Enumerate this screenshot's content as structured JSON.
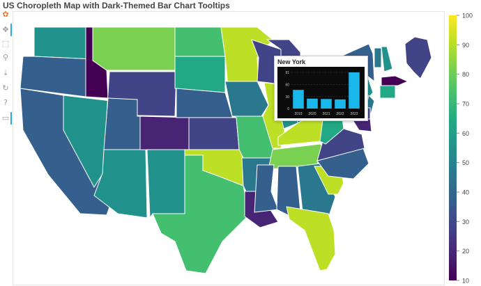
{
  "title": "US Choropleth Map with Dark-Themed Bar Chart Tooltips",
  "colors": {
    "viridis": [
      "#440154",
      "#482475",
      "#414487",
      "#355f8d",
      "#2a788e",
      "#21918c",
      "#22a884",
      "#44bf70",
      "#7ad151",
      "#bddf26",
      "#fde725"
    ],
    "tooltip_bar": "#1ab7ea",
    "tooltip_bg": "#0b0b0b",
    "state_border": "#ffffff"
  },
  "toolbar": {
    "items": [
      {
        "name": "bokeh-logo-icon",
        "glyph": "✿",
        "active": false
      },
      {
        "name": "pan-icon",
        "glyph": "✥",
        "active": true
      },
      {
        "name": "box-zoom-icon",
        "glyph": "⬚",
        "active": false
      },
      {
        "name": "wheel-zoom-icon",
        "glyph": "⚲",
        "active": false
      },
      {
        "name": "save-icon",
        "glyph": "⤓",
        "active": false
      },
      {
        "name": "reset-icon",
        "glyph": "↻",
        "active": false
      },
      {
        "name": "help-icon",
        "glyph": "?",
        "active": false
      },
      {
        "name": "hover-icon",
        "glyph": "▭",
        "active": true
      }
    ]
  },
  "colorbar": {
    "low": 10,
    "high": 100,
    "ticks": [
      "10",
      "20",
      "30",
      "40",
      "50",
      "60",
      "70",
      "80",
      "90",
      "100"
    ]
  },
  "states": [
    {
      "code": "WA",
      "value": 55
    },
    {
      "code": "OR",
      "value": 38
    },
    {
      "code": "CA",
      "value": 36
    },
    {
      "code": "NV",
      "value": 58
    },
    {
      "code": "ID",
      "value": 10
    },
    {
      "code": "MT",
      "value": 85
    },
    {
      "code": "WY",
      "value": 32
    },
    {
      "code": "UT",
      "value": 35
    },
    {
      "code": "AZ",
      "value": 55
    },
    {
      "code": "CO",
      "value": 22
    },
    {
      "code": "NM",
      "value": 57
    },
    {
      "code": "ND",
      "value": 72
    },
    {
      "code": "SD",
      "value": 60
    },
    {
      "code": "NE",
      "value": 37
    },
    {
      "code": "KS",
      "value": 28
    },
    {
      "code": "OK",
      "value": 95
    },
    {
      "code": "TX",
      "value": 70
    },
    {
      "code": "MN",
      "value": 95
    },
    {
      "code": "IA",
      "value": 45
    },
    {
      "code": "MO",
      "value": 75
    },
    {
      "code": "AR",
      "value": 44
    },
    {
      "code": "LA",
      "value": 22
    },
    {
      "code": "WI",
      "value": 30
    },
    {
      "code": "IL",
      "value": 90
    },
    {
      "code": "MI",
      "value": 30
    },
    {
      "code": "IN",
      "value": 55
    },
    {
      "code": "OH",
      "value": 40
    },
    {
      "code": "KY",
      "value": 90
    },
    {
      "code": "TN",
      "value": 85
    },
    {
      "code": "MS",
      "value": 40
    },
    {
      "code": "AL",
      "value": 38
    },
    {
      "code": "GA",
      "value": 48
    },
    {
      "code": "FL",
      "value": 93
    },
    {
      "code": "SC",
      "value": 92
    },
    {
      "code": "NC",
      "value": 35
    },
    {
      "code": "VA",
      "value": 30
    },
    {
      "code": "WV",
      "value": 60
    },
    {
      "code": "PA",
      "value": 55
    },
    {
      "code": "NY",
      "value": 40
    },
    {
      "code": "ME",
      "value": 30
    },
    {
      "code": "VT",
      "value": 45
    },
    {
      "code": "NH",
      "value": 55
    },
    {
      "code": "MA",
      "value": 12
    },
    {
      "code": "CT",
      "value": 65
    },
    {
      "code": "NJ",
      "value": 45
    },
    {
      "code": "MD",
      "value": 18
    },
    {
      "code": "DE",
      "value": 30
    }
  ],
  "tooltip": {
    "state": "New York",
    "chart_data": {
      "type": "bar",
      "categories": [
        "2019",
        "2020",
        "2021",
        "2022",
        "2023"
      ],
      "values": [
        47,
        25,
        24,
        23,
        91
      ],
      "yticks": [
        0,
        30,
        60,
        91
      ],
      "ylim": [
        0,
        91
      ]
    }
  }
}
